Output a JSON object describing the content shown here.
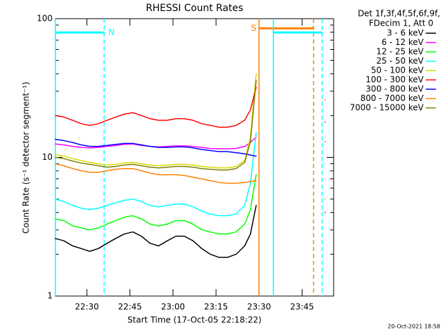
{
  "chart_data": {
    "type": "line",
    "title": "RHESSI Count Rates",
    "x_label": "Start Time (17-Oct-05 22:18:22)",
    "y_label": "Count Rate (s⁻¹ detector segment⁻¹)",
    "legend_title": [
      "Det 1f,3f,4f,5f,6f,9f,",
      "FDecim 1, Att 0"
    ],
    "footer": "20-Oct-2021 18:58",
    "y_log": true,
    "ylim": [
      1,
      100
    ],
    "yticks": [
      1,
      10,
      100
    ],
    "yminorticks": [
      2,
      3,
      4,
      5,
      6,
      7,
      8,
      9,
      20,
      30,
      40,
      50,
      60,
      70,
      80,
      90
    ],
    "xlim": [
      "22:19",
      "23:56"
    ],
    "xticks": [
      "22:30",
      "22:45",
      "23:00",
      "23:15",
      "23:30",
      "23:45"
    ],
    "x": [
      "22:19",
      "22:22",
      "22:25",
      "22:28",
      "22:31",
      "22:34",
      "22:37",
      "22:40",
      "22:43",
      "22:46",
      "22:49",
      "22:52",
      "22:55",
      "22:58",
      "23:01",
      "23:04",
      "23:07",
      "23:10",
      "23:13",
      "23:16",
      "23:19",
      "23:22",
      "23:25",
      "23:27",
      "23:29",
      "23:40",
      "23:53"
    ],
    "markers": [
      {
        "label": "N",
        "start": "22:19",
        "end": "22:36",
        "color": "#00ffff"
      },
      {
        "label": "S",
        "start": "23:30",
        "end": "23:49",
        "color": "#ff8000"
      },
      {
        "start": "23:35",
        "end": "23:52",
        "color": "#00ffff"
      }
    ],
    "series": [
      {
        "name": "3 - 6 keV",
        "color": "#000000",
        "values": [
          2.6,
          2.5,
          2.3,
          2.2,
          2.1,
          2.2,
          2.4,
          2.6,
          2.8,
          2.9,
          2.7,
          2.4,
          2.3,
          2.5,
          2.7,
          2.7,
          2.5,
          2.2,
          2.0,
          1.9,
          1.9,
          2.0,
          2.3,
          2.8,
          4.5,
          null,
          4.0
        ]
      },
      {
        "name": "6 - 12 keV",
        "color": "#ff00ff",
        "values": [
          12.5,
          12.3,
          12.0,
          11.8,
          11.7,
          11.8,
          12.0,
          12.2,
          12.4,
          12.5,
          12.2,
          12.0,
          11.9,
          12.0,
          12.1,
          12.1,
          12.0,
          11.8,
          11.6,
          11.5,
          11.5,
          11.6,
          12.0,
          12.8,
          14,
          null,
          13
        ]
      },
      {
        "name": "12 - 25 keV",
        "color": "#00ff00",
        "values": [
          3.6,
          3.5,
          3.2,
          3.1,
          3.0,
          3.1,
          3.3,
          3.5,
          3.7,
          3.8,
          3.6,
          3.3,
          3.2,
          3.3,
          3.5,
          3.5,
          3.3,
          3.0,
          2.9,
          2.8,
          2.8,
          2.9,
          3.3,
          4.2,
          7.5,
          null,
          5
        ]
      },
      {
        "name": "25 - 50 keV",
        "color": "#00ffff",
        "values": [
          5.0,
          4.8,
          4.5,
          4.3,
          4.2,
          4.3,
          4.5,
          4.7,
          4.9,
          5.0,
          4.8,
          4.5,
          4.4,
          4.5,
          4.6,
          4.6,
          4.4,
          4.1,
          3.9,
          3.8,
          3.8,
          3.9,
          4.5,
          6.5,
          15,
          null,
          9
        ]
      },
      {
        "name": "50 - 100 keV",
        "color": "#d8d800",
        "values": [
          10.5,
          10.2,
          9.8,
          9.5,
          9.2,
          9.0,
          8.8,
          8.9,
          9.1,
          9.2,
          9.0,
          8.8,
          8.7,
          8.8,
          8.9,
          8.9,
          8.8,
          8.6,
          8.5,
          8.4,
          8.4,
          8.6,
          9.5,
          14,
          40,
          null,
          14
        ]
      },
      {
        "name": "100 - 300 keV",
        "color": "#ff0000",
        "values": [
          20,
          19.5,
          18.5,
          17.5,
          17,
          17.5,
          18.5,
          19.5,
          20.5,
          21,
          20,
          19,
          18.5,
          18.5,
          19,
          19,
          18.5,
          17.5,
          17,
          16.5,
          16.5,
          17,
          18.5,
          22,
          32,
          null,
          26
        ]
      },
      {
        "name": "300 - 800 keV",
        "color": "#0000ff",
        "values": [
          13.5,
          13.2,
          12.8,
          12.3,
          12.0,
          12.0,
          12.2,
          12.4,
          12.6,
          12.6,
          12.3,
          12.0,
          11.8,
          11.8,
          11.9,
          11.9,
          11.7,
          11.4,
          11.2,
          11.0,
          11.0,
          10.8,
          10.6,
          10.4,
          10.2,
          null,
          18
        ]
      },
      {
        "name": "800 - 7000 keV",
        "color": "#ff8000",
        "values": [
          9.0,
          8.7,
          8.3,
          8.0,
          7.8,
          7.8,
          8.0,
          8.2,
          8.3,
          8.3,
          8.0,
          7.7,
          7.5,
          7.5,
          7.5,
          7.4,
          7.2,
          7.0,
          6.8,
          6.6,
          6.5,
          6.5,
          6.6,
          6.7,
          6.8,
          null,
          7
        ]
      },
      {
        "name": "7000 - 15000 keV",
        "color": "#808000",
        "values": [
          10,
          9.8,
          9.4,
          9.1,
          8.9,
          8.7,
          8.5,
          8.6,
          8.8,
          8.9,
          8.7,
          8.5,
          8.4,
          8.5,
          8.6,
          8.6,
          8.5,
          8.3,
          8.2,
          8.1,
          8.1,
          8.3,
          9.2,
          13,
          36,
          null,
          13
        ]
      }
    ]
  }
}
